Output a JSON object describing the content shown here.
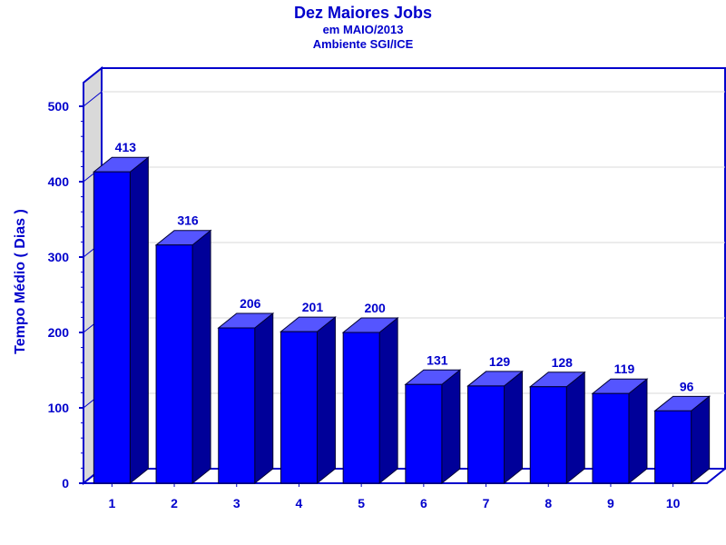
{
  "chart_data": {
    "type": "bar",
    "title": "Dez Maiores Jobs",
    "subtitle_lines": [
      "em MAIO/2013",
      "Ambiente SGI/ICE"
    ],
    "ylabel": "Tempo Médio ( Dias )",
    "xlabel": "",
    "categories": [
      "1",
      "2",
      "3",
      "4",
      "5",
      "6",
      "7",
      "8",
      "9",
      "10"
    ],
    "values": [
      413,
      316,
      206,
      201,
      200,
      131,
      129,
      128,
      119,
      96
    ],
    "ylim": [
      0,
      500
    ],
    "yticks": [
      0,
      100,
      200,
      300,
      400,
      500
    ],
    "grid": true,
    "legend": "none",
    "colors": {
      "bar_front": "#0000ff",
      "bar_top": "#5555ff",
      "bar_side": "#000099",
      "text": "#0000cc",
      "axis": "#0000cc",
      "grid": "#d8d8d8",
      "left_wall": "#d9d9d9"
    }
  }
}
